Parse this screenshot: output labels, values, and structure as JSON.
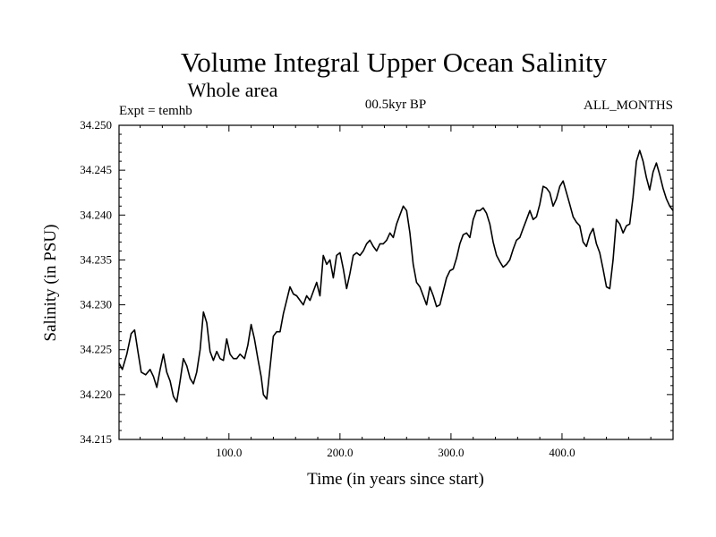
{
  "header": {
    "title": "Volume Integral Upper Ocean Salinity",
    "subtitle": "Whole area",
    "experiment": "Expt = temhb",
    "period": "00.5kyr BP",
    "months": "ALL_MONTHS"
  },
  "chart_data": {
    "type": "line",
    "title": "Volume Integral Upper Ocean Salinity",
    "subtitle": "Whole area",
    "xlabel": "Time (in years since start)",
    "ylabel": "Salinity (in PSU)",
    "xlim": [
      1,
      500
    ],
    "ylim": [
      34.215,
      34.25
    ],
    "x_ticks": [
      100,
      200,
      300,
      400
    ],
    "x_tick_labels": [
      "100.0",
      "200.0",
      "300.0",
      "400.0"
    ],
    "y_ticks": [
      34.215,
      34.22,
      34.225,
      34.23,
      34.235,
      34.24,
      34.245,
      34.25
    ],
    "y_tick_labels": [
      "34.215",
      "34.220",
      "34.225",
      "34.230",
      "34.235",
      "34.240",
      "34.245",
      "34.250"
    ],
    "grid": false,
    "series": [
      {
        "name": "salinity",
        "points": [
          [
            1,
            34.2235
          ],
          [
            4,
            34.2228
          ],
          [
            8,
            34.2245
          ],
          [
            12,
            34.2268
          ],
          [
            15,
            34.2272
          ],
          [
            18,
            34.2248
          ],
          [
            21,
            34.2225
          ],
          [
            25,
            34.2222
          ],
          [
            29,
            34.2228
          ],
          [
            32,
            34.222
          ],
          [
            35,
            34.2208
          ],
          [
            38,
            34.2228
          ],
          [
            41,
            34.2245
          ],
          [
            44,
            34.2225
          ],
          [
            47,
            34.2215
          ],
          [
            50,
            34.2198
          ],
          [
            53,
            34.2192
          ],
          [
            56,
            34.2215
          ],
          [
            59,
            34.224
          ],
          [
            62,
            34.2232
          ],
          [
            65,
            34.2218
          ],
          [
            68,
            34.2212
          ],
          [
            71,
            34.2225
          ],
          [
            74,
            34.225
          ],
          [
            77,
            34.2292
          ],
          [
            80,
            34.228
          ],
          [
            83,
            34.2248
          ],
          [
            86,
            34.2238
          ],
          [
            89,
            34.2248
          ],
          [
            92,
            34.224
          ],
          [
            95,
            34.2238
          ],
          [
            98,
            34.2262
          ],
          [
            101,
            34.2245
          ],
          [
            104,
            34.224
          ],
          [
            107,
            34.224
          ],
          [
            110,
            34.2245
          ],
          [
            114,
            34.224
          ],
          [
            117,
            34.2255
          ],
          [
            120,
            34.2278
          ],
          [
            123,
            34.2262
          ],
          [
            126,
            34.224
          ],
          [
            129,
            34.222
          ],
          [
            131,
            34.22
          ],
          [
            134,
            34.2195
          ],
          [
            137,
            34.223
          ],
          [
            140,
            34.2265
          ],
          [
            143,
            34.227
          ],
          [
            146,
            34.227
          ],
          [
            149,
            34.229
          ],
          [
            152,
            34.2305
          ],
          [
            155,
            34.232
          ],
          [
            158,
            34.2312
          ],
          [
            161,
            34.231
          ],
          [
            164,
            34.2305
          ],
          [
            167,
            34.23
          ],
          [
            170,
            34.231
          ],
          [
            173,
            34.2305
          ],
          [
            176,
            34.2315
          ],
          [
            179,
            34.2325
          ],
          [
            182,
            34.231
          ],
          [
            185,
            34.2355
          ],
          [
            188,
            34.2345
          ],
          [
            191,
            34.235
          ],
          [
            194,
            34.233
          ],
          [
            197,
            34.2355
          ],
          [
            200,
            34.2358
          ],
          [
            203,
            34.234
          ],
          [
            206,
            34.2318
          ],
          [
            209,
            34.2335
          ],
          [
            212,
            34.2355
          ],
          [
            215,
            34.2358
          ],
          [
            218,
            34.2355
          ],
          [
            221,
            34.236
          ],
          [
            224,
            34.2368
          ],
          [
            227,
            34.2372
          ],
          [
            230,
            34.2365
          ],
          [
            233,
            34.236
          ],
          [
            236,
            34.2368
          ],
          [
            239,
            34.2368
          ],
          [
            242,
            34.2372
          ],
          [
            245,
            34.238
          ],
          [
            248,
            34.2375
          ],
          [
            251,
            34.239
          ],
          [
            254,
            34.24
          ],
          [
            257,
            34.241
          ],
          [
            260,
            34.2405
          ],
          [
            263,
            34.238
          ],
          [
            266,
            34.2345
          ],
          [
            269,
            34.2325
          ],
          [
            272,
            34.232
          ],
          [
            275,
            34.231
          ],
          [
            278,
            34.23
          ],
          [
            281,
            34.232
          ],
          [
            284,
            34.231
          ],
          [
            287,
            34.2298
          ],
          [
            290,
            34.23
          ],
          [
            293,
            34.2315
          ],
          [
            296,
            34.233
          ],
          [
            299,
            34.2338
          ],
          [
            302,
            34.234
          ],
          [
            305,
            34.2352
          ],
          [
            308,
            34.2368
          ],
          [
            311,
            34.2378
          ],
          [
            314,
            34.238
          ],
          [
            317,
            34.2375
          ],
          [
            320,
            34.2395
          ],
          [
            323,
            34.2405
          ],
          [
            326,
            34.2405
          ],
          [
            329,
            34.2408
          ],
          [
            332,
            34.2402
          ],
          [
            335,
            34.239
          ],
          [
            338,
            34.237
          ],
          [
            341,
            34.2355
          ],
          [
            344,
            34.2348
          ],
          [
            347,
            34.2342
          ],
          [
            350,
            34.2345
          ],
          [
            353,
            34.235
          ],
          [
            356,
            34.2362
          ],
          [
            359,
            34.2372
          ],
          [
            362,
            34.2375
          ],
          [
            365,
            34.2385
          ],
          [
            368,
            34.2395
          ],
          [
            371,
            34.2405
          ],
          [
            374,
            34.2395
          ],
          [
            377,
            34.2398
          ],
          [
            380,
            34.2412
          ],
          [
            383,
            34.2432
          ],
          [
            386,
            34.243
          ],
          [
            389,
            34.2425
          ],
          [
            392,
            34.241
          ],
          [
            395,
            34.2418
          ],
          [
            398,
            34.2432
          ],
          [
            401,
            34.2438
          ],
          [
            404,
            34.2425
          ],
          [
            407,
            34.2412
          ],
          [
            410,
            34.2398
          ],
          [
            413,
            34.2392
          ],
          [
            416,
            34.2388
          ],
          [
            419,
            34.237
          ],
          [
            422,
            34.2365
          ],
          [
            425,
            34.2378
          ],
          [
            428,
            34.2385
          ],
          [
            431,
            34.2368
          ],
          [
            434,
            34.2358
          ],
          [
            437,
            34.234
          ],
          [
            440,
            34.232
          ],
          [
            443,
            34.2318
          ],
          [
            446,
            34.235
          ],
          [
            449,
            34.2395
          ],
          [
            452,
            34.239
          ],
          [
            455,
            34.238
          ],
          [
            458,
            34.2388
          ],
          [
            461,
            34.239
          ],
          [
            464,
            34.242
          ],
          [
            467,
            34.246
          ],
          [
            470,
            34.2472
          ],
          [
            473,
            34.246
          ],
          [
            476,
            34.2442
          ],
          [
            479,
            34.2428
          ],
          [
            482,
            34.2448
          ],
          [
            485,
            34.2458
          ],
          [
            488,
            34.2445
          ],
          [
            491,
            34.243
          ],
          [
            494,
            34.2418
          ],
          [
            497,
            34.241
          ],
          [
            500,
            34.2405
          ]
        ]
      }
    ]
  }
}
